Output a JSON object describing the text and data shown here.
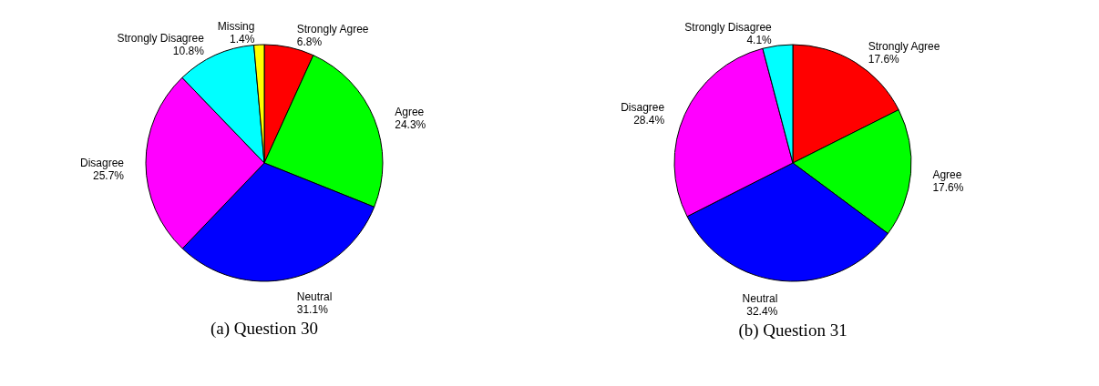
{
  "chart_data": [
    {
      "type": "pie",
      "title": "(a) Question 30",
      "categories": [
        "Strongly Agree",
        "Agree",
        "Neutral",
        "Disagree",
        "Strongly Disagree",
        "Missing"
      ],
      "values": [
        6.8,
        24.3,
        31.1,
        25.7,
        10.8,
        1.4
      ],
      "colors": [
        "#ff0000",
        "#00ff00",
        "#0000ff",
        "#ff00ff",
        "#00ffff",
        "#ffff00"
      ],
      "value_labels": [
        "6.8%",
        "24.3%",
        "31.1%",
        "25.7%",
        "10.8%",
        "1.4%"
      ]
    },
    {
      "type": "pie",
      "title": "(b) Question 31",
      "categories": [
        "Strongly Agree",
        "Agree",
        "Neutral",
        "Disagree",
        "Strongly Disagree"
      ],
      "values": [
        17.6,
        17.6,
        32.4,
        28.4,
        4.1
      ],
      "colors": [
        "#ff0000",
        "#00ff00",
        "#0000ff",
        "#ff00ff",
        "#00ffff"
      ],
      "value_labels": [
        "17.6%",
        "17.6%",
        "32.4%",
        "28.4%",
        "4.1%"
      ]
    }
  ]
}
